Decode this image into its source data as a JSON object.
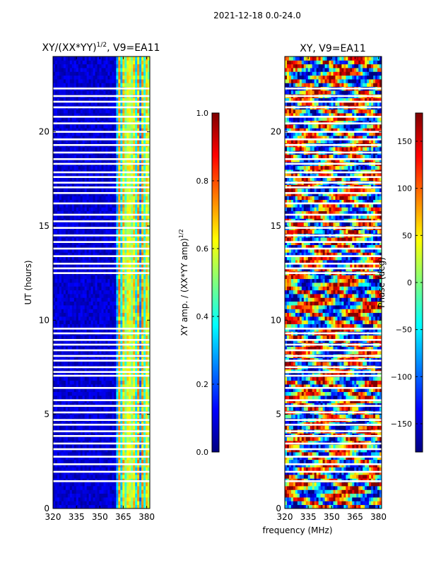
{
  "suptitle": "2021-12-18 0.0-24.0",
  "shared_xlabel": "frequency (MHz)",
  "colors": {
    "jet": [
      "#00007f",
      "#0000ff",
      "#007fff",
      "#00ffff",
      "#7fff7f",
      "#ffff00",
      "#ff7f00",
      "#ff0000",
      "#7f0000"
    ],
    "gap": "#ffffff",
    "axis": "#000000"
  },
  "chart_data": [
    {
      "type": "heatmap",
      "title_prefix": "XY/(XX*YY)",
      "title_sup": "1/2",
      "title_suffix": ", V9=EA11",
      "xlabel": "",
      "ylabel": "UT (hours)",
      "xlim": [
        320,
        382
      ],
      "ylim": [
        0,
        24
      ],
      "xticks": [
        320,
        335,
        350,
        365,
        380
      ],
      "yticks": [
        0,
        5,
        10,
        15,
        20
      ],
      "colorbar": {
        "label": "XY amp. / (XX*YY amp)",
        "label_sup": "1/2",
        "range": [
          0.0,
          1.0
        ],
        "ticks": [
          "0.0",
          "0.2",
          "0.4",
          "0.6",
          "0.8",
          "1.0"
        ]
      },
      "description": "Normalized cross-correlation amplitude; near 0 (dark blue) below ~360 MHz, elevated 0.4-0.7 in vertical stripes between ~360 and 382 MHz",
      "flagged_ut_hours": [
        1.45,
        1.95,
        2.35,
        2.75,
        3.15,
        3.45,
        3.85,
        4.1,
        4.45,
        4.7,
        5.1,
        5.45,
        5.75,
        6.4,
        7.05,
        7.25,
        7.5,
        7.85,
        8.1,
        8.4,
        8.7,
        8.95,
        9.3,
        9.55,
        12.5,
        12.75,
        13.0,
        13.4,
        13.8,
        14.15,
        14.5,
        14.9,
        15.25,
        15.6,
        16.2,
        16.75,
        17.05,
        17.3,
        17.6,
        17.85,
        18.3,
        18.55,
        18.9,
        19.3,
        19.6,
        20.0,
        20.45,
        20.8,
        21.3,
        21.6,
        21.9,
        22.3
      ]
    },
    {
      "type": "heatmap",
      "title": "XY, V9=EA11",
      "xlabel": "",
      "ylabel": "",
      "xlim": [
        320,
        382
      ],
      "ylim": [
        0,
        24
      ],
      "xticks": [
        320,
        335,
        350,
        365,
        380
      ],
      "yticks": [
        0,
        5,
        10,
        15,
        20
      ],
      "colorbar": {
        "label": "Phase (deg)",
        "range": [
          -180,
          180
        ],
        "ticks": [
          "−150",
          "−100",
          "−50",
          "0",
          "50",
          "100",
          "150"
        ]
      },
      "description": "Cross-correlation phase; noisy, banded structure spanning the full -180 to 180 degree range",
      "flagged_ut_hours": [
        1.45,
        1.95,
        2.35,
        2.75,
        3.15,
        3.45,
        3.85,
        4.1,
        4.45,
        4.7,
        5.1,
        5.45,
        5.75,
        6.4,
        7.05,
        7.25,
        7.5,
        7.85,
        8.1,
        8.4,
        8.7,
        8.95,
        9.3,
        9.55,
        12.5,
        12.75,
        13.0,
        13.4,
        13.8,
        14.15,
        14.5,
        14.9,
        15.25,
        15.6,
        16.2,
        16.75,
        17.05,
        17.3,
        17.6,
        17.85,
        18.3,
        18.55,
        18.9,
        19.3,
        19.6,
        20.0,
        20.45,
        20.8,
        21.3,
        21.6,
        21.9,
        22.3
      ]
    }
  ]
}
